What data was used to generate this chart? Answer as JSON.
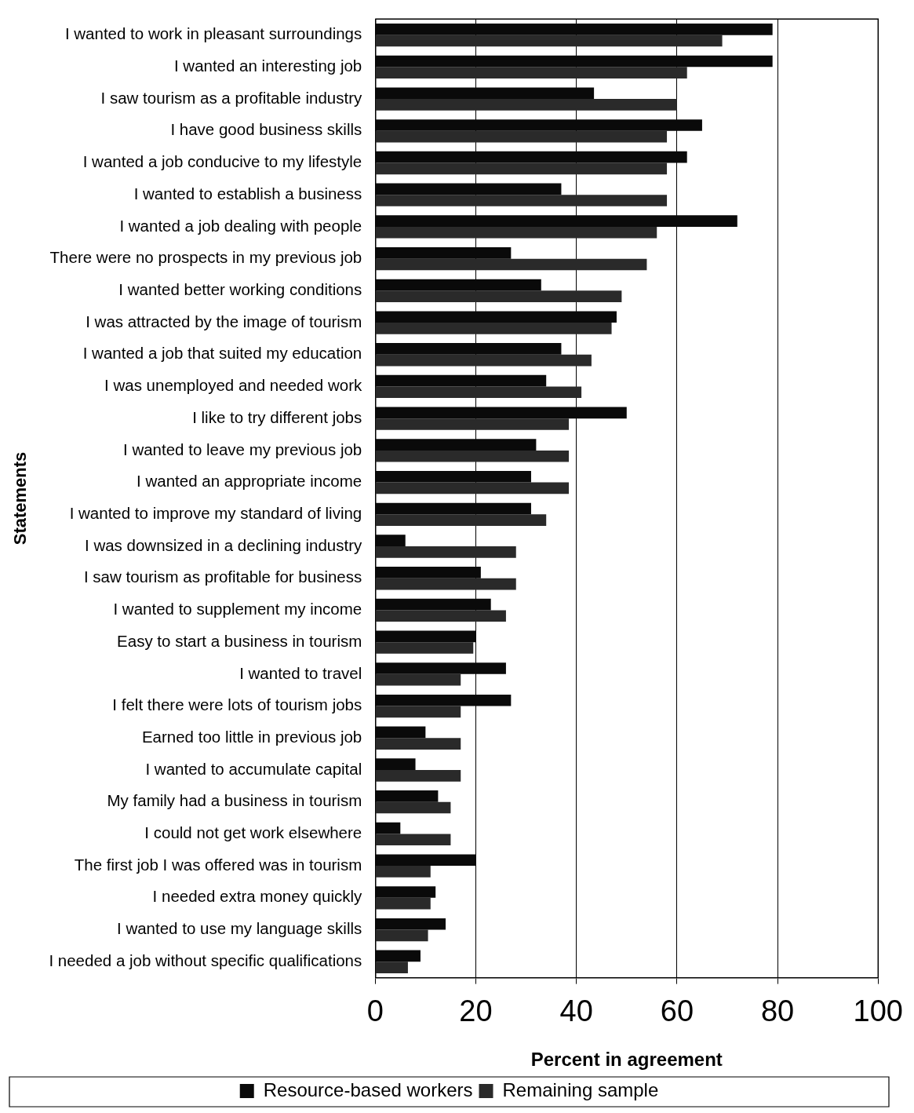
{
  "chart_data": {
    "type": "bar",
    "orientation": "horizontal",
    "xlabel": "Percent in agreement",
    "ylabel": "Statements",
    "categories": [
      "I wanted to work in pleasant surroundings",
      "I wanted an interesting job",
      "I saw tourism as a profitable industry",
      "I have good business skills",
      "I wanted a job conducive to my lifestyle",
      "I wanted to establish a business",
      "I wanted a job dealing with people",
      "There were no prospects in my previous job",
      "I wanted better working conditions",
      "I was attracted by the image of tourism",
      "I wanted a job that suited my education",
      "I was unemployed and needed work",
      "I like to try different jobs",
      "I wanted to leave my previous job",
      "I wanted an appropriate income",
      "I wanted to improve my standard of living",
      "I was downsized in a declining industry",
      "I saw tourism as profitable for business",
      "I wanted to supplement my income",
      "Easy to start a business in tourism",
      "I wanted to travel",
      "I felt there were lots of tourism jobs",
      "Earned too little in previous job",
      "I wanted to accumulate capital",
      "My family had a business in tourism",
      "I could not get work elsewhere",
      "The first job I was offered was in tourism",
      "I needed extra money quickly",
      "I wanted to use my language skills",
      "I needed a job without specific qualifications"
    ],
    "series": [
      {
        "name": "Resource-based workers",
        "color": "#0a0a0a",
        "values": [
          79,
          79,
          43.5,
          65,
          62,
          37,
          72,
          27,
          33,
          48,
          37,
          34,
          50,
          32,
          31,
          31,
          6,
          21,
          23,
          20,
          26,
          27,
          10,
          8,
          12.5,
          5,
          20,
          12,
          14,
          9
        ]
      },
      {
        "name": "Remaining sample",
        "color": "#2a2a2a",
        "values": [
          69,
          62,
          60,
          58,
          58,
          58,
          56,
          54,
          49,
          47,
          43,
          41,
          38.5,
          38.5,
          38.5,
          34,
          28,
          28,
          26,
          19.5,
          17,
          17,
          17,
          17,
          15,
          15,
          11,
          11,
          10.5,
          6.5
        ]
      }
    ],
    "xlim": [
      0,
      100
    ],
    "xticks": [
      0,
      20,
      40,
      60,
      80,
      100
    ],
    "grid": "x",
    "legend": "bottom"
  }
}
